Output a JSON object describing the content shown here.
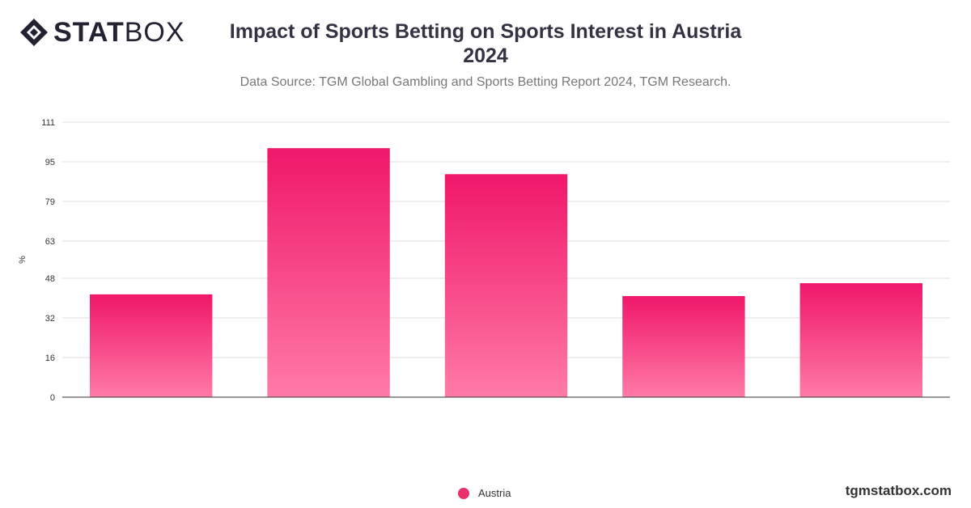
{
  "brand": {
    "logo_bold": "STAT",
    "logo_light": "BOX",
    "watermark": "tgmstatbox.com"
  },
  "header": {
    "title_line1": "Impact of Sports Betting on Sports Interest in Austria",
    "title_line2": "2024",
    "subtitle": "Data Source: TGM Global Gambling and Sports Betting Report 2024, TGM Research."
  },
  "colors": {
    "bar_top": "#f0176a",
    "bar_bottom": "#ff7aa8",
    "grid": "#dddddd",
    "axis": "#333333"
  },
  "chart_data": {
    "type": "bar",
    "title": "Impact of Sports Betting on Sports Interest in Austria 2024",
    "categories": [
      "",
      "",
      "",
      "",
      ""
    ],
    "series": [
      {
        "name": "Austria",
        "values": [
          41.5,
          100.5,
          90,
          40.8,
          46
        ]
      }
    ],
    "ylabel": "%",
    "xlabel": "",
    "ylim": [
      0,
      111
    ],
    "yticks": [
      0,
      16,
      32,
      48,
      63,
      79,
      95,
      111
    ],
    "grid": true,
    "legend": "bottom-center"
  }
}
